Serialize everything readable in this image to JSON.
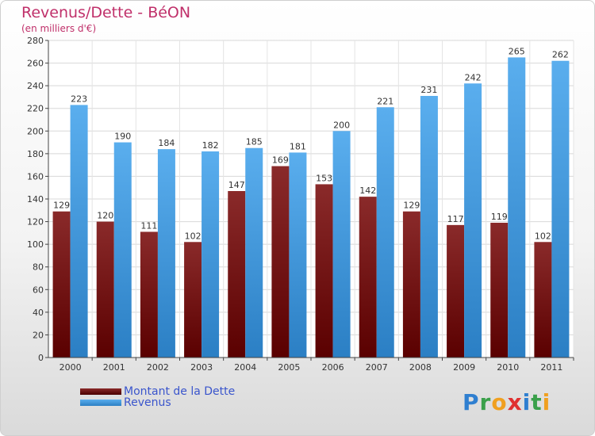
{
  "title": "Revenus/Dette - BéON",
  "subtitle": "(en milliers d'€)",
  "colors": {
    "dette": "#7a1010",
    "revenus": "#4c9ee6",
    "title": "#c0306a",
    "legend_text": "#3a55cc"
  },
  "legend": {
    "dette": "Montant de la Dette",
    "revenus": "Revenus"
  },
  "logo": {
    "letters": [
      "P",
      "r",
      "o",
      "x",
      "i",
      "t",
      "i"
    ]
  },
  "chart_data": {
    "type": "bar",
    "title": "Revenus/Dette - BéON",
    "ylabel": "(en milliers d'€)",
    "xlabel": "",
    "ylim": [
      0,
      280
    ],
    "yticks": [
      0,
      20,
      40,
      60,
      80,
      100,
      120,
      140,
      160,
      180,
      200,
      220,
      240,
      260,
      280
    ],
    "categories": [
      "2000",
      "2001",
      "2002",
      "2003",
      "2004",
      "2005",
      "2006",
      "2007",
      "2008",
      "2009",
      "2010",
      "2011"
    ],
    "series": [
      {
        "name": "Montant de la Dette",
        "values": [
          129,
          120,
          111,
          102,
          147,
          169,
          153,
          142,
          129,
          117,
          119,
          102
        ]
      },
      {
        "name": "Revenus",
        "values": [
          223,
          190,
          184,
          182,
          185,
          181,
          200,
          221,
          231,
          242,
          265,
          262
        ]
      }
    ],
    "grid": true,
    "legend_position": "bottom-left"
  }
}
